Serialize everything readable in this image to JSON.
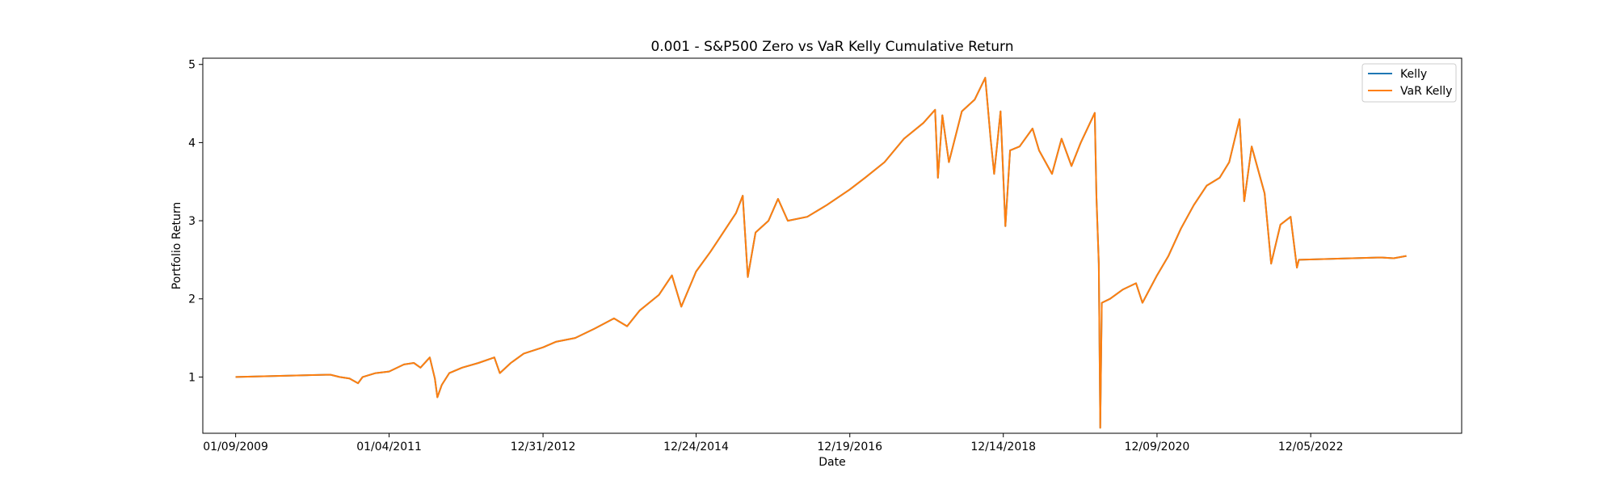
{
  "chart_data": {
    "type": "line",
    "title": "0.001 - S&P500 Zero vs VaR Kelly Cumulative Return",
    "xlabel": "Date",
    "ylabel": "Portfolio Return",
    "x_ticks": [
      "01/09/2009",
      "01/04/2011",
      "12/31/2012",
      "12/24/2014",
      "12/19/2016",
      "12/14/2018",
      "12/09/2020",
      "12/05/2022"
    ],
    "y_ticks": [
      "1",
      "2",
      "3",
      "4",
      "5"
    ],
    "xlim": [
      "2008-08-07",
      "2024-11-17"
    ],
    "ylim": [
      0.28,
      5.08
    ],
    "grid": false,
    "legend_position": "upper right",
    "series": [
      {
        "name": "Kelly",
        "color": "#1f77b4",
        "points": [
          [
            "2009-01-09",
            1.0
          ],
          [
            "2010-04-01",
            1.03
          ],
          [
            "2010-05-15",
            1.0
          ],
          [
            "2010-07-01",
            0.98
          ],
          [
            "2010-08-10",
            0.92
          ],
          [
            "2010-09-01",
            1.0
          ],
          [
            "2010-11-01",
            1.05
          ],
          [
            "2011-01-04",
            1.07
          ],
          [
            "2011-03-15",
            1.16
          ],
          [
            "2011-05-01",
            1.18
          ],
          [
            "2011-06-01",
            1.12
          ],
          [
            "2011-07-15",
            1.25
          ],
          [
            "2011-08-08",
            0.98
          ],
          [
            "2011-08-20",
            0.74
          ],
          [
            "2011-09-10",
            0.9
          ],
          [
            "2011-10-15",
            1.05
          ],
          [
            "2011-12-15",
            1.12
          ],
          [
            "2012-03-01",
            1.18
          ],
          [
            "2012-05-15",
            1.25
          ],
          [
            "2012-06-10",
            1.05
          ],
          [
            "2012-08-01",
            1.18
          ],
          [
            "2012-10-01",
            1.3
          ],
          [
            "2012-12-31",
            1.38
          ],
          [
            "2013-03-01",
            1.45
          ],
          [
            "2013-06-01",
            1.5
          ],
          [
            "2013-09-01",
            1.62
          ],
          [
            "2013-12-01",
            1.75
          ],
          [
            "2014-02-01",
            1.65
          ],
          [
            "2014-04-01",
            1.85
          ],
          [
            "2014-07-01",
            2.05
          ],
          [
            "2014-09-01",
            2.3
          ],
          [
            "2014-10-15",
            1.9
          ],
          [
            "2014-12-24",
            2.35
          ],
          [
            "2015-03-01",
            2.6
          ],
          [
            "2015-05-01",
            2.85
          ],
          [
            "2015-07-01",
            3.1
          ],
          [
            "2015-08-01",
            3.32
          ],
          [
            "2015-08-25",
            2.28
          ],
          [
            "2015-10-01",
            2.85
          ],
          [
            "2015-12-01",
            3.0
          ],
          [
            "2016-01-15",
            3.28
          ],
          [
            "2016-03-01",
            3.0
          ],
          [
            "2016-06-01",
            3.05
          ],
          [
            "2016-09-01",
            3.2
          ],
          [
            "2016-12-19",
            3.4
          ],
          [
            "2017-03-01",
            3.55
          ],
          [
            "2017-06-01",
            3.75
          ],
          [
            "2017-09-01",
            4.05
          ],
          [
            "2017-12-01",
            4.25
          ],
          [
            "2018-01-26",
            4.42
          ],
          [
            "2018-02-08",
            3.55
          ],
          [
            "2018-03-01",
            4.35
          ],
          [
            "2018-04-01",
            3.75
          ],
          [
            "2018-06-01",
            4.4
          ],
          [
            "2018-08-01",
            4.55
          ],
          [
            "2018-09-20",
            4.83
          ],
          [
            "2018-10-15",
            4.05
          ],
          [
            "2018-11-01",
            3.6
          ],
          [
            "2018-12-01",
            4.4
          ],
          [
            "2018-12-24",
            2.93
          ],
          [
            "2019-01-15",
            3.9
          ],
          [
            "2019-03-01",
            3.95
          ],
          [
            "2019-05-01",
            4.18
          ],
          [
            "2019-06-01",
            3.9
          ],
          [
            "2019-08-01",
            3.6
          ],
          [
            "2019-09-15",
            4.05
          ],
          [
            "2019-11-01",
            3.7
          ],
          [
            "2019-12-15",
            4.0
          ],
          [
            "2020-02-19",
            4.38
          ],
          [
            "2020-02-27",
            3.3
          ],
          [
            "2020-03-09",
            2.45
          ],
          [
            "2020-03-16",
            0.35
          ],
          [
            "2020-03-23",
            1.95
          ],
          [
            "2020-05-01",
            2.0
          ],
          [
            "2020-07-01",
            2.12
          ],
          [
            "2020-09-01",
            2.2
          ],
          [
            "2020-10-01",
            1.95
          ],
          [
            "2020-12-09",
            2.3
          ],
          [
            "2021-02-01",
            2.55
          ],
          [
            "2021-04-01",
            2.9
          ],
          [
            "2021-06-01",
            3.2
          ],
          [
            "2021-08-01",
            3.45
          ],
          [
            "2021-10-01",
            3.55
          ],
          [
            "2021-11-15",
            3.75
          ],
          [
            "2022-01-03",
            4.3
          ],
          [
            "2022-01-25",
            3.25
          ],
          [
            "2022-03-01",
            3.95
          ],
          [
            "2022-05-01",
            3.35
          ],
          [
            "2022-06-01",
            2.45
          ],
          [
            "2022-07-15",
            2.95
          ],
          [
            "2022-09-01",
            3.05
          ],
          [
            "2022-10-01",
            2.4
          ],
          [
            "2022-10-10",
            2.5
          ],
          [
            "2023-11-01",
            2.53
          ],
          [
            "2024-01-01",
            2.52
          ],
          [
            "2024-03-01",
            2.55
          ]
        ]
      },
      {
        "name": "VaR Kelly",
        "color": "#ff7f0e",
        "points": [
          [
            "2009-01-09",
            1.0
          ],
          [
            "2010-04-01",
            1.03
          ],
          [
            "2010-05-15",
            1.0
          ],
          [
            "2010-07-01",
            0.98
          ],
          [
            "2010-08-10",
            0.92
          ],
          [
            "2010-09-01",
            1.0
          ],
          [
            "2010-11-01",
            1.05
          ],
          [
            "2011-01-04",
            1.07
          ],
          [
            "2011-03-15",
            1.16
          ],
          [
            "2011-05-01",
            1.18
          ],
          [
            "2011-06-01",
            1.12
          ],
          [
            "2011-07-15",
            1.25
          ],
          [
            "2011-08-08",
            0.98
          ],
          [
            "2011-08-20",
            0.74
          ],
          [
            "2011-09-10",
            0.9
          ],
          [
            "2011-10-15",
            1.05
          ],
          [
            "2011-12-15",
            1.12
          ],
          [
            "2012-03-01",
            1.18
          ],
          [
            "2012-05-15",
            1.25
          ],
          [
            "2012-06-10",
            1.05
          ],
          [
            "2012-08-01",
            1.18
          ],
          [
            "2012-10-01",
            1.3
          ],
          [
            "2012-12-31",
            1.38
          ],
          [
            "2013-03-01",
            1.45
          ],
          [
            "2013-06-01",
            1.5
          ],
          [
            "2013-09-01",
            1.62
          ],
          [
            "2013-12-01",
            1.75
          ],
          [
            "2014-02-01",
            1.65
          ],
          [
            "2014-04-01",
            1.85
          ],
          [
            "2014-07-01",
            2.05
          ],
          [
            "2014-09-01",
            2.3
          ],
          [
            "2014-10-15",
            1.9
          ],
          [
            "2014-12-24",
            2.35
          ],
          [
            "2015-03-01",
            2.6
          ],
          [
            "2015-05-01",
            2.85
          ],
          [
            "2015-07-01",
            3.1
          ],
          [
            "2015-08-01",
            3.32
          ],
          [
            "2015-08-25",
            2.28
          ],
          [
            "2015-10-01",
            2.85
          ],
          [
            "2015-12-01",
            3.0
          ],
          [
            "2016-01-15",
            3.28
          ],
          [
            "2016-03-01",
            3.0
          ],
          [
            "2016-06-01",
            3.05
          ],
          [
            "2016-09-01",
            3.2
          ],
          [
            "2016-12-19",
            3.4
          ],
          [
            "2017-03-01",
            3.55
          ],
          [
            "2017-06-01",
            3.75
          ],
          [
            "2017-09-01",
            4.05
          ],
          [
            "2017-12-01",
            4.25
          ],
          [
            "2018-01-26",
            4.42
          ],
          [
            "2018-02-08",
            3.55
          ],
          [
            "2018-03-01",
            4.35
          ],
          [
            "2018-04-01",
            3.75
          ],
          [
            "2018-06-01",
            4.4
          ],
          [
            "2018-08-01",
            4.55
          ],
          [
            "2018-09-20",
            4.83
          ],
          [
            "2018-10-15",
            4.05
          ],
          [
            "2018-11-01",
            3.6
          ],
          [
            "2018-12-01",
            4.4
          ],
          [
            "2018-12-24",
            2.93
          ],
          [
            "2019-01-15",
            3.9
          ],
          [
            "2019-03-01",
            3.95
          ],
          [
            "2019-05-01",
            4.18
          ],
          [
            "2019-06-01",
            3.9
          ],
          [
            "2019-08-01",
            3.6
          ],
          [
            "2019-09-15",
            4.05
          ],
          [
            "2019-11-01",
            3.7
          ],
          [
            "2019-12-15",
            4.0
          ],
          [
            "2020-02-19",
            4.38
          ],
          [
            "2020-02-27",
            3.3
          ],
          [
            "2020-03-09",
            2.45
          ],
          [
            "2020-03-16",
            0.35
          ],
          [
            "2020-03-23",
            1.95
          ],
          [
            "2020-05-01",
            2.0
          ],
          [
            "2020-07-01",
            2.12
          ],
          [
            "2020-09-01",
            2.2
          ],
          [
            "2020-10-01",
            1.95
          ],
          [
            "2020-12-09",
            2.3
          ],
          [
            "2021-02-01",
            2.55
          ],
          [
            "2021-04-01",
            2.9
          ],
          [
            "2021-06-01",
            3.2
          ],
          [
            "2021-08-01",
            3.45
          ],
          [
            "2021-10-01",
            3.55
          ],
          [
            "2021-11-15",
            3.75
          ],
          [
            "2022-01-03",
            4.3
          ],
          [
            "2022-01-25",
            3.25
          ],
          [
            "2022-03-01",
            3.95
          ],
          [
            "2022-05-01",
            3.35
          ],
          [
            "2022-06-01",
            2.45
          ],
          [
            "2022-07-15",
            2.95
          ],
          [
            "2022-09-01",
            3.05
          ],
          [
            "2022-10-01",
            2.4
          ],
          [
            "2022-10-10",
            2.5
          ],
          [
            "2023-11-01",
            2.53
          ],
          [
            "2024-01-01",
            2.52
          ],
          [
            "2024-03-01",
            2.55
          ]
        ]
      }
    ]
  }
}
